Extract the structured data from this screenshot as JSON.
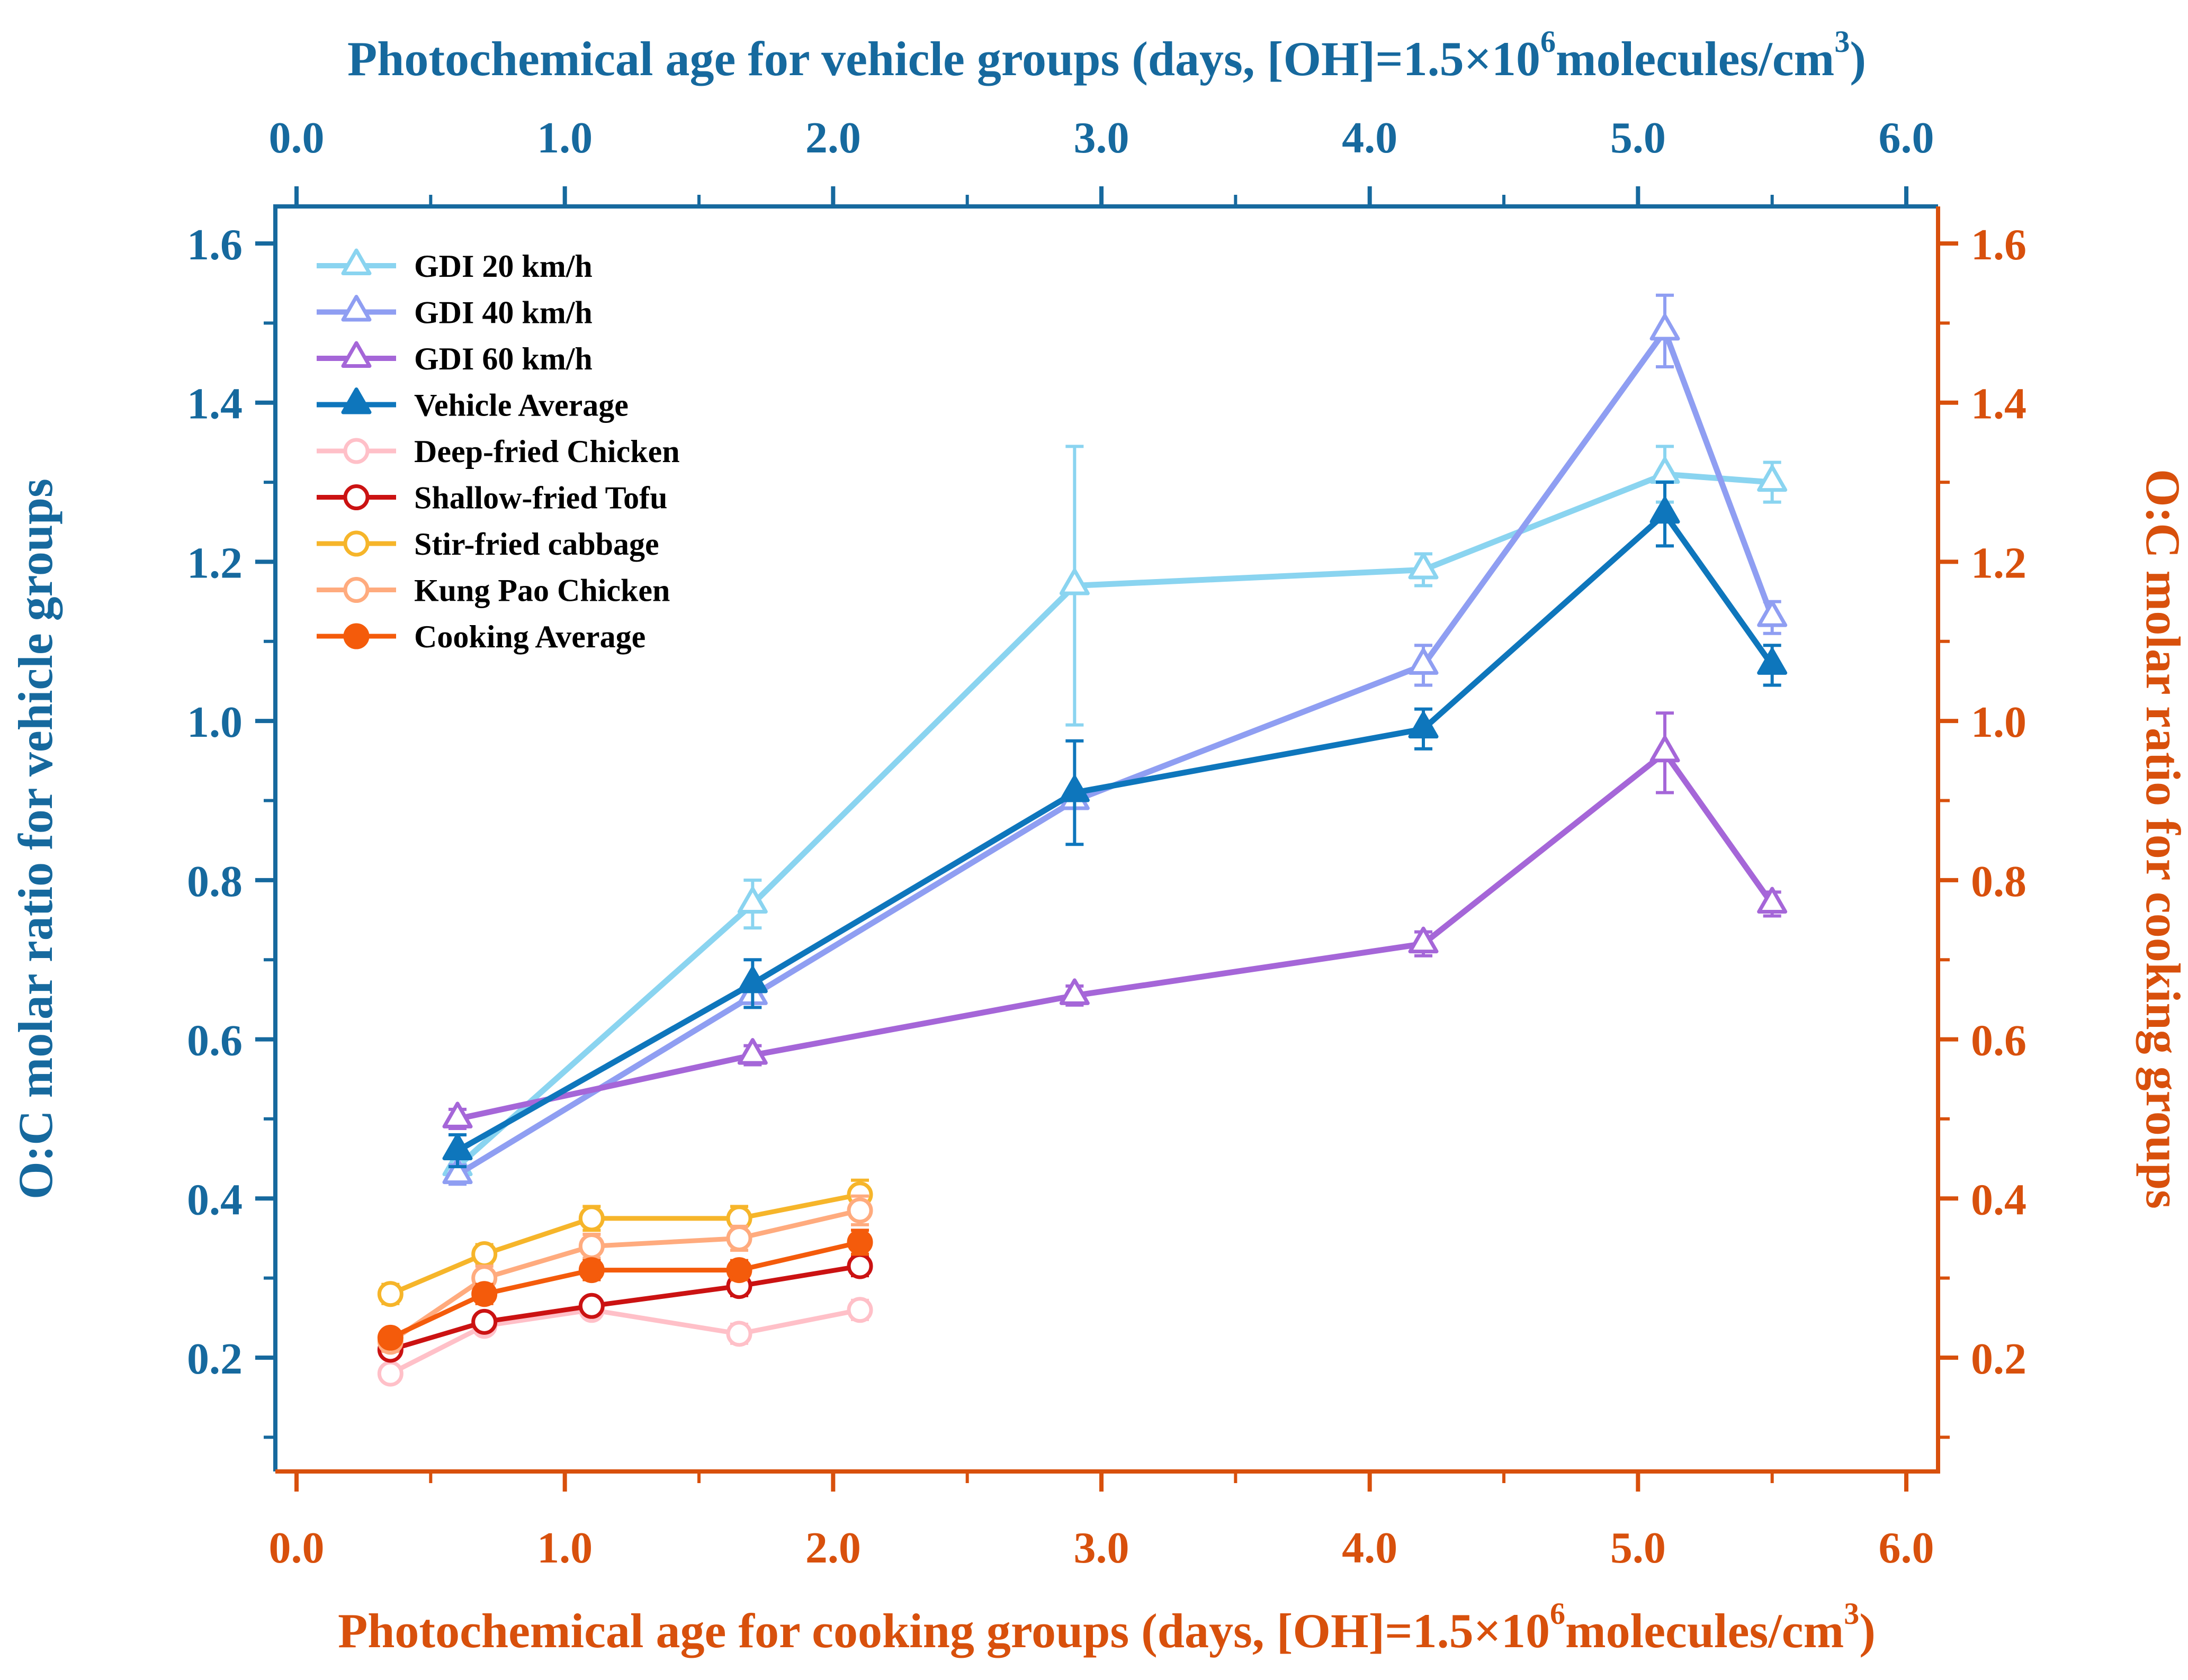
{
  "chart_data": {
    "type": "line",
    "title": "",
    "xlim": [
      -0.08,
      6.12
    ],
    "ylim": [
      0.05,
      1.65
    ],
    "grid": false,
    "legend_position": "top-left-inside",
    "axes": {
      "top": {
        "color": "#16699E",
        "title_parts": [
          {
            "t": "Photochemical age for vehicle groups (days, [OH]=1.5×10",
            "sup": false
          },
          {
            "t": "6",
            "sup": true
          },
          {
            "t": "molecules/cm",
            "sup": false
          },
          {
            "t": "3",
            "sup": true
          },
          {
            "t": ")",
            "sup": false
          }
        ],
        "tick_values": [
          0,
          1,
          2,
          3,
          4,
          5,
          6
        ],
        "tick_labels": [
          "0.0",
          "1.0",
          "2.0",
          "3.0",
          "4.0",
          "5.0",
          "6.0"
        ],
        "minor_ticks": [
          0.5,
          1.5,
          2.5,
          3.5,
          4.5,
          5.5
        ]
      },
      "bottom": {
        "color": "#D8500C",
        "title_parts": [
          {
            "t": "Photochemical age for cooking groups (days, [OH]=1.5×10",
            "sup": false
          },
          {
            "t": "6",
            "sup": true
          },
          {
            "t": "molecules/cm",
            "sup": false
          },
          {
            "t": "3",
            "sup": true
          },
          {
            "t": ")",
            "sup": false
          }
        ],
        "tick_values": [
          0,
          1,
          2,
          3,
          4,
          5,
          6
        ],
        "tick_labels": [
          "0.0",
          "1.0",
          "2.0",
          "3.0",
          "4.0",
          "5.0",
          "6.0"
        ],
        "minor_ticks": [
          0.5,
          1.5,
          2.5,
          3.5,
          4.5,
          5.5
        ]
      },
      "left": {
        "color": "#16699E",
        "title": "O:C molar ratio for vehicle groups",
        "tick_values": [
          0.2,
          0.4,
          0.6,
          0.8,
          1.0,
          1.2,
          1.4,
          1.6
        ],
        "tick_labels": [
          "0.2",
          "0.4",
          "0.6",
          "0.8",
          "1.0",
          "1.2",
          "1.4",
          "1.6"
        ],
        "minor_ticks": [
          0.1,
          0.3,
          0.5,
          0.7,
          0.9,
          1.1,
          1.3,
          1.5
        ]
      },
      "right": {
        "color": "#D8500C",
        "title": "O:C molar ratio for cooking groups",
        "tick_values": [
          0.2,
          0.4,
          0.6,
          0.8,
          1.0,
          1.2,
          1.4,
          1.6
        ],
        "tick_labels": [
          "0.2",
          "0.4",
          "0.6",
          "0.8",
          "1.0",
          "1.2",
          "1.4",
          "1.6"
        ],
        "minor_ticks": [
          0.1,
          0.3,
          0.5,
          0.7,
          0.9,
          1.1,
          1.3,
          1.5
        ]
      }
    },
    "series": [
      {
        "name": "GDI 20 km/h",
        "group": "vehicle",
        "marker": "triangle-open",
        "color": "#8AD4F0",
        "x": [
          0.6,
          1.7,
          2.9,
          4.2,
          5.1,
          5.5
        ],
        "y": [
          0.44,
          0.77,
          1.17,
          1.19,
          1.31,
          1.3
        ],
        "yerr": [
          0.015,
          0.03,
          0.175,
          0.02,
          0.035,
          0.025
        ]
      },
      {
        "name": "GDI 40 km/h",
        "group": "vehicle",
        "marker": "triangle-open",
        "color": "#8F9EF2",
        "x": [
          0.6,
          1.7,
          2.9,
          4.2,
          5.1,
          5.5
        ],
        "y": [
          0.43,
          0.655,
          0.9,
          1.07,
          1.49,
          1.13
        ],
        "yerr": [
          0.012,
          0,
          0,
          0.025,
          0.045,
          0.02
        ]
      },
      {
        "name": "GDI 60 km/h",
        "group": "vehicle",
        "marker": "triangle-open",
        "color": "#A566D8",
        "x": [
          0.6,
          1.7,
          2.9,
          4.2,
          5.1,
          5.5
        ],
        "y": [
          0.5,
          0.58,
          0.655,
          0.72,
          0.96,
          0.77
        ],
        "yerr": [
          0.012,
          0.012,
          0.012,
          0.015,
          0.05,
          0.015
        ]
      },
      {
        "name": "Vehicle Average",
        "group": "vehicle",
        "marker": "triangle-filled",
        "color": "#0E76BC",
        "x": [
          0.6,
          1.7,
          2.9,
          4.2,
          5.1,
          5.5
        ],
        "y": [
          0.46,
          0.67,
          0.91,
          0.99,
          1.26,
          1.07
        ],
        "yerr": [
          0.02,
          0.03,
          0.065,
          0.025,
          0.04,
          0.025
        ]
      },
      {
        "name": "Deep-fried Chicken",
        "group": "cooking",
        "marker": "circle-open",
        "color": "#FFC0C8",
        "x": [
          0.35,
          0.7,
          1.1,
          1.65,
          2.1
        ],
        "y": [
          0.18,
          0.24,
          0.26,
          0.23,
          0.26
        ],
        "yerr": [
          0.01,
          0.01,
          0.01,
          0.012,
          0.012
        ]
      },
      {
        "name": "Shallow-fried Tofu",
        "group": "cooking",
        "marker": "circle-open",
        "color": "#CB1212",
        "x": [
          0.35,
          0.7,
          1.1,
          1.65,
          2.1
        ],
        "y": [
          0.21,
          0.245,
          0.265,
          0.29,
          0.315
        ],
        "yerr": [
          0.01,
          0.01,
          0.01,
          0.012,
          0.012
        ]
      },
      {
        "name": "Stir-fried cabbage",
        "group": "cooking",
        "marker": "circle-open",
        "color": "#F6B52A",
        "x": [
          0.35,
          0.7,
          1.1,
          1.65,
          2.1
        ],
        "y": [
          0.28,
          0.33,
          0.375,
          0.375,
          0.405
        ],
        "yerr": [
          0.012,
          0.012,
          0.015,
          0.015,
          0.018
        ]
      },
      {
        "name": "Kung Pao Chicken",
        "group": "cooking",
        "marker": "circle-open",
        "color": "#FFAB7E",
        "x": [
          0.35,
          0.7,
          1.1,
          1.65,
          2.1
        ],
        "y": [
          0.22,
          0.3,
          0.34,
          0.35,
          0.385
        ],
        "yerr": [
          0.012,
          0.015,
          0.015,
          0.015,
          0.018
        ]
      },
      {
        "name": "Cooking Average",
        "group": "cooking",
        "marker": "circle-filled",
        "color": "#F45B0B",
        "x": [
          0.35,
          0.7,
          1.1,
          1.65,
          2.1
        ],
        "y": [
          0.225,
          0.28,
          0.31,
          0.31,
          0.345
        ],
        "yerr": [
          0.01,
          0.012,
          0.012,
          0.012,
          0.015
        ]
      }
    ]
  }
}
